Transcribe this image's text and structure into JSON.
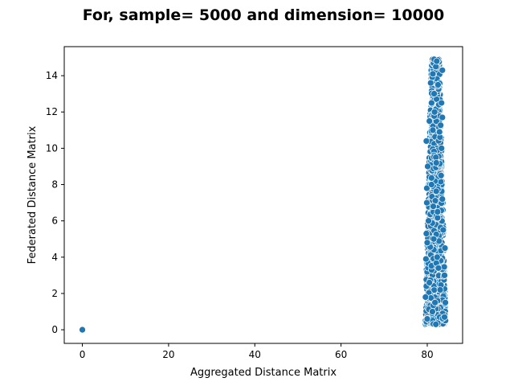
{
  "chart_data": {
    "type": "scatter",
    "title": "For, sample= 5000 and dimension= 10000",
    "xlabel": "Aggregated Distance Matrix",
    "ylabel": "Federated Distance Matrix",
    "xlim": [
      -4.2,
      88.2
    ],
    "ylim": [
      -0.75,
      15.6
    ],
    "xticks": [
      0,
      20,
      40,
      60,
      80
    ],
    "yticks": [
      0,
      2,
      4,
      6,
      8,
      10,
      12,
      14
    ],
    "grid": false,
    "marker_color": "#1f77b4",
    "marker_edge_color": "#ffffff",
    "points": [
      {
        "x": 0,
        "y": 0
      },
      {
        "x": 80.0,
        "y": 0.6
      },
      {
        "x": 82.0,
        "y": 0.3
      },
      {
        "x": 84.0,
        "y": 0.7
      },
      {
        "x": 79.6,
        "y": 1.8
      },
      {
        "x": 84.2,
        "y": 1.5
      },
      {
        "x": 81.2,
        "y": 1.0
      },
      {
        "x": 83.0,
        "y": 2.2
      },
      {
        "x": 80.5,
        "y": 2.6
      },
      {
        "x": 84.0,
        "y": 3.0
      },
      {
        "x": 79.7,
        "y": 3.9
      },
      {
        "x": 82.6,
        "y": 3.4
      },
      {
        "x": 84.1,
        "y": 4.5
      },
      {
        "x": 80.0,
        "y": 4.8
      },
      {
        "x": 81.5,
        "y": 5.0
      },
      {
        "x": 79.8,
        "y": 5.3
      },
      {
        "x": 83.7,
        "y": 5.5
      },
      {
        "x": 80.3,
        "y": 6.0
      },
      {
        "x": 82.4,
        "y": 6.5
      },
      {
        "x": 79.9,
        "y": 7.0
      },
      {
        "x": 83.5,
        "y": 7.2
      },
      {
        "x": 79.9,
        "y": 7.8
      },
      {
        "x": 81.0,
        "y": 8.0
      },
      {
        "x": 83.2,
        "y": 8.5
      },
      {
        "x": 80.1,
        "y": 9.0
      },
      {
        "x": 82.0,
        "y": 9.5
      },
      {
        "x": 79.8,
        "y": 10.4
      },
      {
        "x": 83.3,
        "y": 10.0
      },
      {
        "x": 81.3,
        "y": 11.0
      },
      {
        "x": 83.5,
        "y": 11.7
      },
      {
        "x": 80.5,
        "y": 11.5
      },
      {
        "x": 82.7,
        "y": 12.4
      },
      {
        "x": 81.0,
        "y": 12.5
      },
      {
        "x": 83.3,
        "y": 12.5
      },
      {
        "x": 80.8,
        "y": 13.6
      },
      {
        "x": 82.5,
        "y": 13.5
      },
      {
        "x": 83.5,
        "y": 14.3
      },
      {
        "x": 81.3,
        "y": 14.1
      },
      {
        "x": 82.0,
        "y": 14.5
      },
      {
        "x": 81.6,
        "y": 14.9
      },
      {
        "x": 82.2,
        "y": 14.8
      },
      {
        "x": 81.8,
        "y": 1.5
      },
      {
        "x": 82.3,
        "y": 4.0
      },
      {
        "x": 81.4,
        "y": 6.8
      },
      {
        "x": 82.1,
        "y": 9.2
      },
      {
        "x": 81.7,
        "y": 12.0
      }
    ]
  }
}
